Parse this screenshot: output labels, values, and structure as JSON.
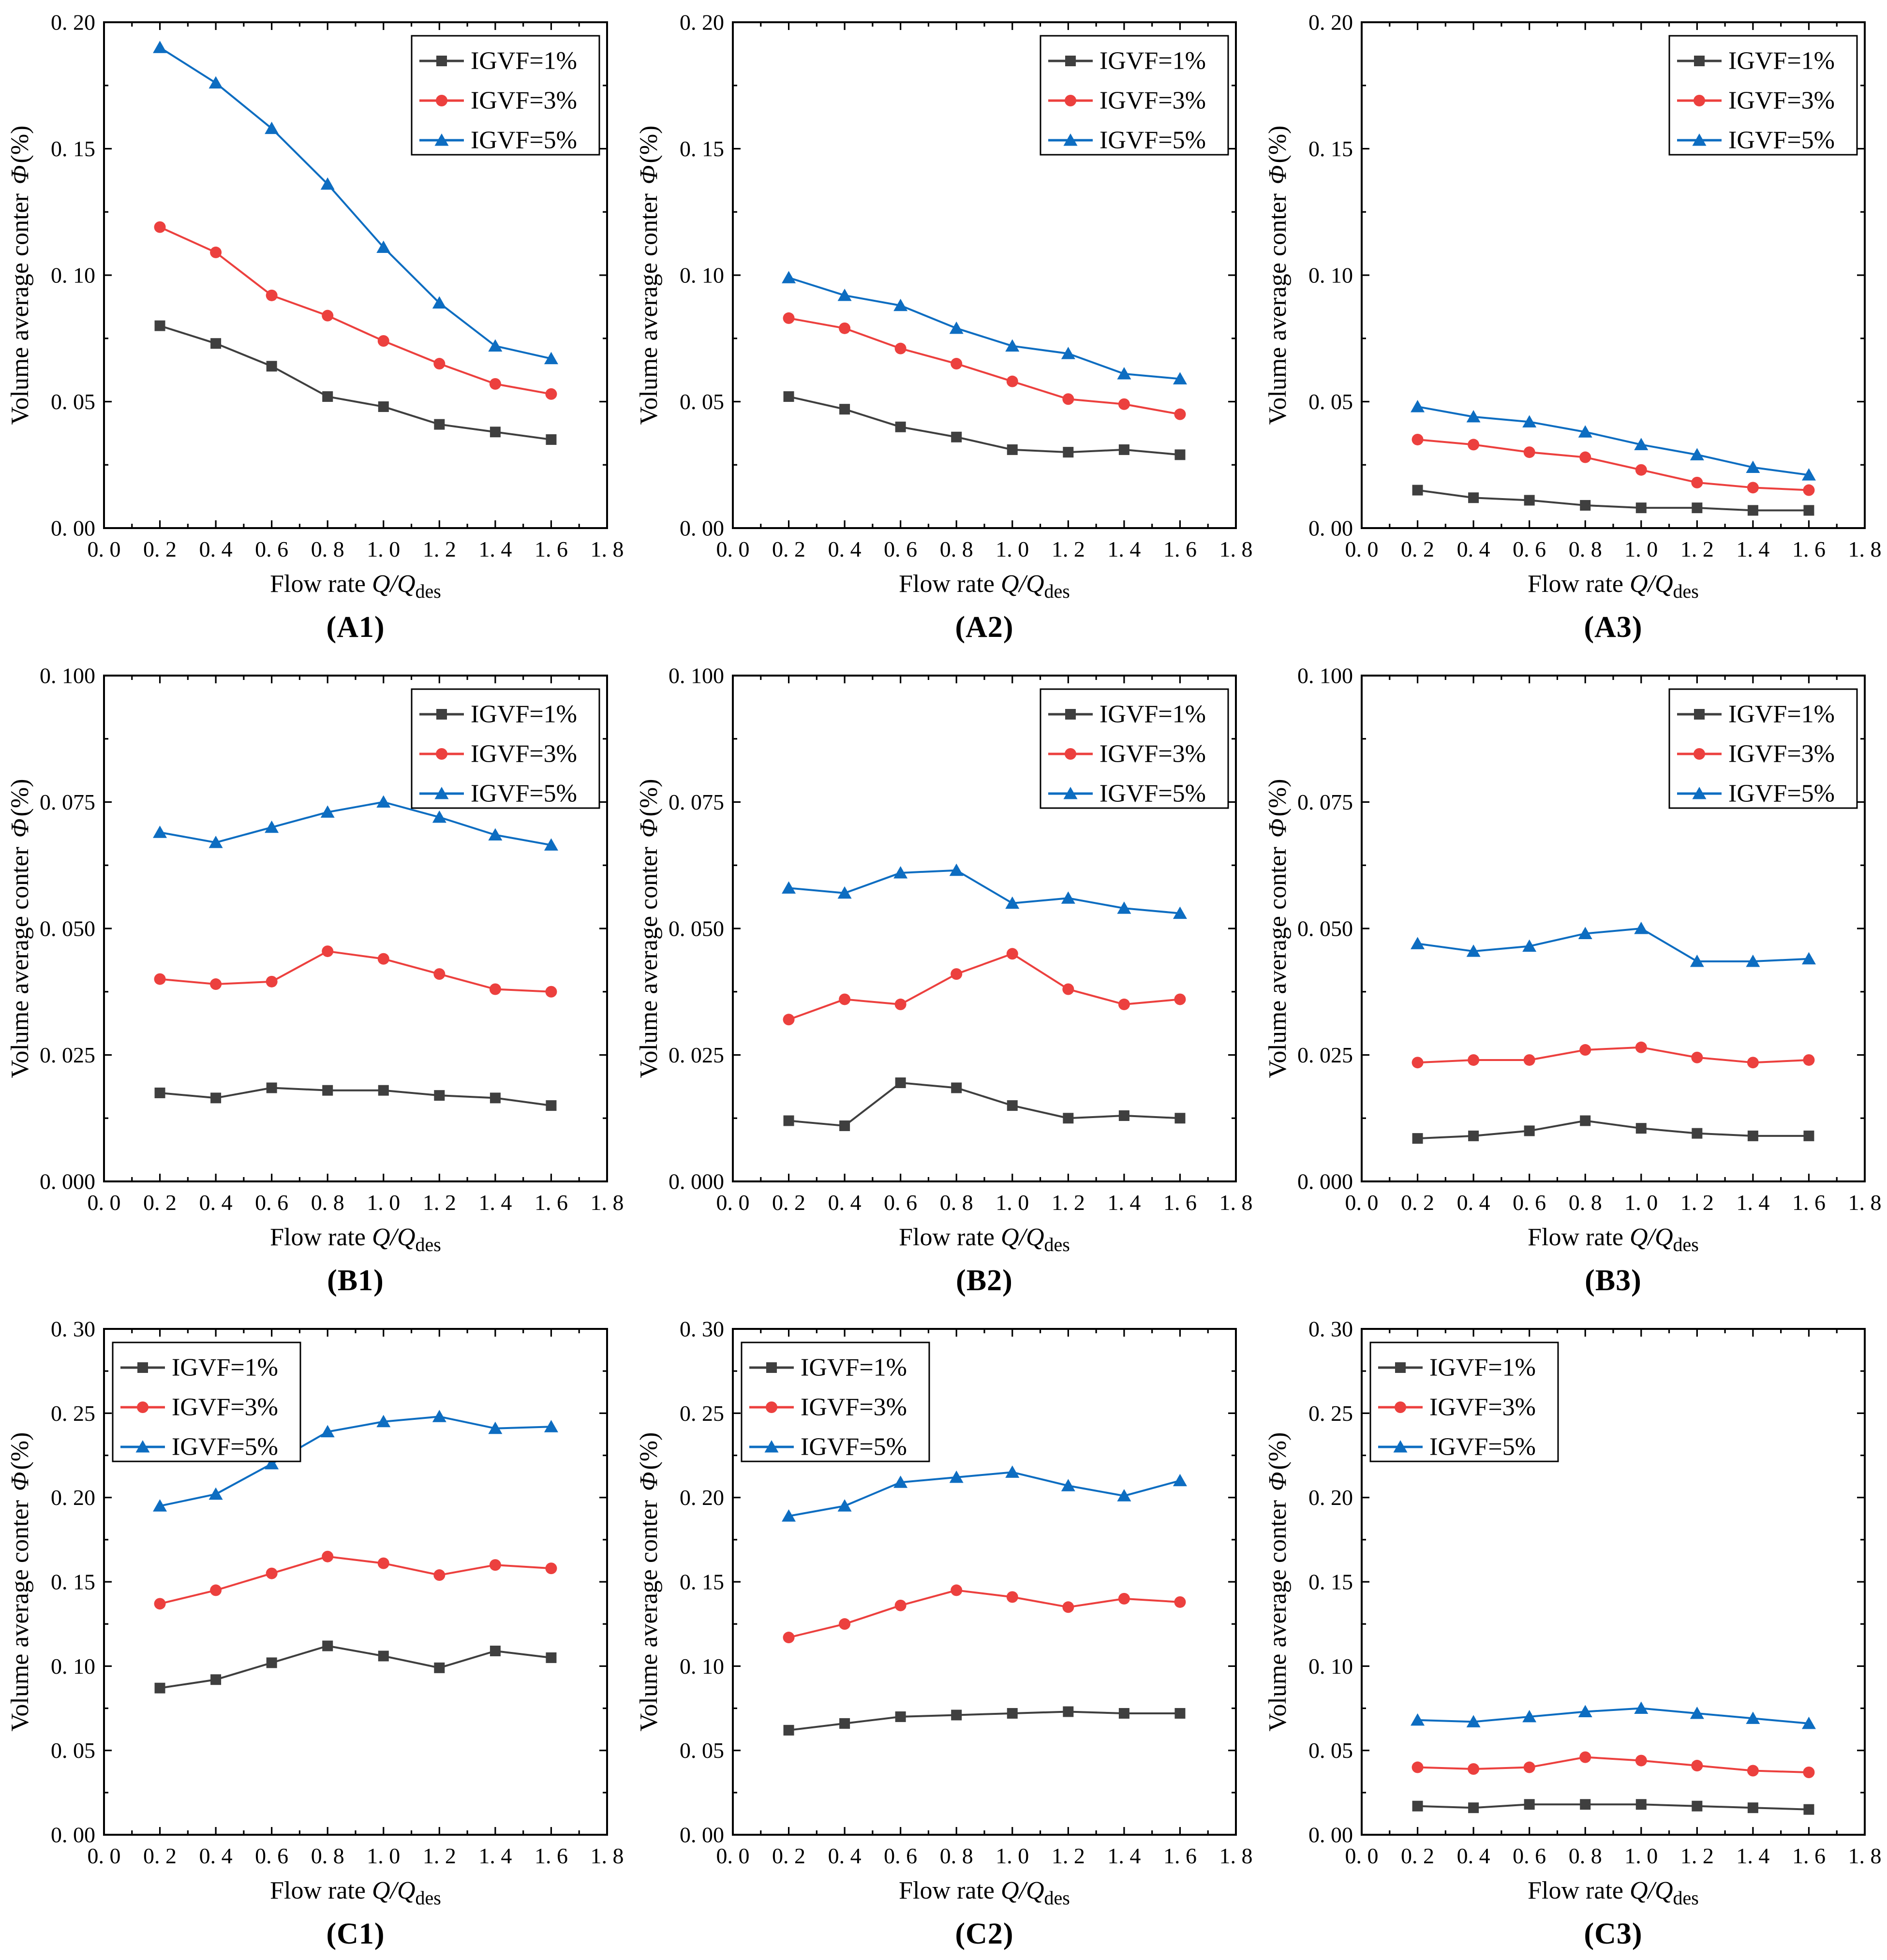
{
  "page": {
    "background": "#ffffff"
  },
  "axis": {
    "xlabel_prefix": "Flow rate ",
    "xlabel_math": "Q/Q",
    "xlabel_sub": "des",
    "ylabel_prefix": "Volume average conter ",
    "ylabel_symbol": "Φ",
    "ylabel_unit": "(%)",
    "xlim": [
      0.0,
      1.8
    ],
    "xtick_values": [
      0.0,
      0.2,
      0.4,
      0.6,
      0.8,
      1.0,
      1.2,
      1.4,
      1.6,
      1.8
    ],
    "xtick_labels": [
      "0. 0",
      "0. 2",
      "0. 4",
      "0. 6",
      "0. 8",
      "1. 0",
      "1. 2",
      "1. 4",
      "1. 6",
      "1. 8"
    ]
  },
  "chart_data": [
    {
      "id": "A1",
      "panel_label": "(A1)",
      "type": "line",
      "legend_position": "top-right",
      "ylim": [
        0,
        0.2
      ],
      "ytick_values": [
        0,
        0.05,
        0.1,
        0.15,
        0.2
      ],
      "ytick_labels": [
        "0. 00",
        "0. 05",
        "0. 10",
        "0. 15",
        "0. 20"
      ],
      "x": [
        0.2,
        0.4,
        0.6,
        0.8,
        1.0,
        1.2,
        1.4,
        1.6
      ],
      "series": [
        {
          "name": "IGVF=1%",
          "marker": "square",
          "color": "#3f3f3f",
          "values": [
            0.08,
            0.073,
            0.064,
            0.052,
            0.048,
            0.041,
            0.038,
            0.035
          ]
        },
        {
          "name": "IGVF=3%",
          "marker": "circle",
          "color": "#ec403e",
          "values": [
            0.119,
            0.109,
            0.092,
            0.084,
            0.074,
            0.065,
            0.057,
            0.053
          ]
        },
        {
          "name": "IGVF=5%",
          "marker": "triangle",
          "color": "#0d6dc1",
          "values": [
            0.19,
            0.176,
            0.158,
            0.136,
            0.111,
            0.089,
            0.072,
            0.067
          ]
        }
      ]
    },
    {
      "id": "A2",
      "panel_label": "(A2)",
      "type": "line",
      "legend_position": "top-right",
      "ylim": [
        0,
        0.2
      ],
      "ytick_values": [
        0,
        0.05,
        0.1,
        0.15,
        0.2
      ],
      "ytick_labels": [
        "0. 00",
        "0. 05",
        "0. 10",
        "0. 15",
        "0. 20"
      ],
      "x": [
        0.2,
        0.4,
        0.6,
        0.8,
        1.0,
        1.2,
        1.4,
        1.6
      ],
      "series": [
        {
          "name": "IGVF=1%",
          "marker": "square",
          "color": "#3f3f3f",
          "values": [
            0.052,
            0.047,
            0.04,
            0.036,
            0.031,
            0.03,
            0.031,
            0.029
          ]
        },
        {
          "name": "IGVF=3%",
          "marker": "circle",
          "color": "#ec403e",
          "values": [
            0.083,
            0.079,
            0.071,
            0.065,
            0.058,
            0.051,
            0.049,
            0.045
          ]
        },
        {
          "name": "IGVF=5%",
          "marker": "triangle",
          "color": "#0d6dc1",
          "values": [
            0.099,
            0.092,
            0.088,
            0.079,
            0.072,
            0.069,
            0.061,
            0.059
          ]
        }
      ]
    },
    {
      "id": "A3",
      "panel_label": "(A3)",
      "type": "line",
      "legend_position": "top-right",
      "ylim": [
        0,
        0.2
      ],
      "ytick_values": [
        0,
        0.05,
        0.1,
        0.15,
        0.2
      ],
      "ytick_labels": [
        "0. 00",
        "0. 05",
        "0. 10",
        "0. 15",
        "0. 20"
      ],
      "x": [
        0.2,
        0.4,
        0.6,
        0.8,
        1.0,
        1.2,
        1.4,
        1.6
      ],
      "series": [
        {
          "name": "IGVF=1%",
          "marker": "square",
          "color": "#3f3f3f",
          "values": [
            0.015,
            0.012,
            0.011,
            0.009,
            0.008,
            0.008,
            0.007,
            0.007
          ]
        },
        {
          "name": "IGVF=3%",
          "marker": "circle",
          "color": "#ec403e",
          "values": [
            0.035,
            0.033,
            0.03,
            0.028,
            0.023,
            0.018,
            0.016,
            0.015
          ]
        },
        {
          "name": "IGVF=5%",
          "marker": "triangle",
          "color": "#0d6dc1",
          "values": [
            0.048,
            0.044,
            0.042,
            0.038,
            0.033,
            0.029,
            0.024,
            0.021
          ]
        }
      ]
    },
    {
      "id": "B1",
      "panel_label": "(B1)",
      "type": "line",
      "legend_position": "top-right",
      "ylim": [
        0,
        0.1
      ],
      "ytick_values": [
        0,
        0.025,
        0.05,
        0.075,
        0.1
      ],
      "ytick_labels": [
        "0. 000",
        "0. 025",
        "0. 050",
        "0. 075",
        "0. 100"
      ],
      "x": [
        0.2,
        0.4,
        0.6,
        0.8,
        1.0,
        1.2,
        1.4,
        1.6
      ],
      "series": [
        {
          "name": "IGVF=1%",
          "marker": "square",
          "color": "#3f3f3f",
          "values": [
            0.0175,
            0.0165,
            0.0185,
            0.018,
            0.018,
            0.017,
            0.0165,
            0.015
          ]
        },
        {
          "name": "IGVF=3%",
          "marker": "circle",
          "color": "#ec403e",
          "values": [
            0.04,
            0.039,
            0.0395,
            0.0455,
            0.044,
            0.041,
            0.038,
            0.0375
          ]
        },
        {
          "name": "IGVF=5%",
          "marker": "triangle",
          "color": "#0d6dc1",
          "values": [
            0.069,
            0.067,
            0.07,
            0.073,
            0.075,
            0.072,
            0.0685,
            0.0665
          ]
        }
      ]
    },
    {
      "id": "B2",
      "panel_label": "(B2)",
      "type": "line",
      "legend_position": "top-right",
      "ylim": [
        0,
        0.1
      ],
      "ytick_values": [
        0,
        0.025,
        0.05,
        0.075,
        0.1
      ],
      "ytick_labels": [
        "0. 000",
        "0. 025",
        "0. 050",
        "0. 075",
        "0. 100"
      ],
      "x": [
        0.2,
        0.4,
        0.6,
        0.8,
        1.0,
        1.2,
        1.4,
        1.6
      ],
      "series": [
        {
          "name": "IGVF=1%",
          "marker": "square",
          "color": "#3f3f3f",
          "values": [
            0.012,
            0.011,
            0.0195,
            0.0185,
            0.015,
            0.0125,
            0.013,
            0.0125
          ]
        },
        {
          "name": "IGVF=3%",
          "marker": "circle",
          "color": "#ec403e",
          "values": [
            0.032,
            0.036,
            0.035,
            0.041,
            0.045,
            0.038,
            0.035,
            0.036
          ]
        },
        {
          "name": "IGVF=5%",
          "marker": "triangle",
          "color": "#0d6dc1",
          "values": [
            0.058,
            0.057,
            0.061,
            0.0615,
            0.055,
            0.056,
            0.054,
            0.053
          ]
        }
      ]
    },
    {
      "id": "B3",
      "panel_label": "(B3)",
      "type": "line",
      "legend_position": "top-right",
      "ylim": [
        0,
        0.1
      ],
      "ytick_values": [
        0,
        0.025,
        0.05,
        0.075,
        0.1
      ],
      "ytick_labels": [
        "0. 000",
        "0. 025",
        "0. 050",
        "0. 075",
        "0. 100"
      ],
      "x": [
        0.2,
        0.4,
        0.6,
        0.8,
        1.0,
        1.2,
        1.4,
        1.6
      ],
      "series": [
        {
          "name": "IGVF=1%",
          "marker": "square",
          "color": "#3f3f3f",
          "values": [
            0.0085,
            0.009,
            0.01,
            0.012,
            0.0105,
            0.0095,
            0.009,
            0.009
          ]
        },
        {
          "name": "IGVF=3%",
          "marker": "circle",
          "color": "#ec403e",
          "values": [
            0.0235,
            0.024,
            0.024,
            0.026,
            0.0265,
            0.0245,
            0.0235,
            0.024
          ]
        },
        {
          "name": "IGVF=5%",
          "marker": "triangle",
          "color": "#0d6dc1",
          "values": [
            0.047,
            0.0455,
            0.0465,
            0.049,
            0.05,
            0.0435,
            0.0435,
            0.044
          ]
        }
      ]
    },
    {
      "id": "C1",
      "panel_label": "(C1)",
      "type": "line",
      "legend_position": "top-left",
      "ylim": [
        0,
        0.3
      ],
      "ytick_values": [
        0,
        0.05,
        0.1,
        0.15,
        0.2,
        0.25,
        0.3
      ],
      "ytick_labels": [
        "0. 00",
        "0. 05",
        "0. 10",
        "0. 15",
        "0. 20",
        "0. 25",
        "0. 30"
      ],
      "x": [
        0.2,
        0.4,
        0.6,
        0.8,
        1.0,
        1.2,
        1.4,
        1.6
      ],
      "series": [
        {
          "name": "IGVF=1%",
          "marker": "square",
          "color": "#3f3f3f",
          "values": [
            0.087,
            0.092,
            0.102,
            0.112,
            0.106,
            0.099,
            0.109,
            0.105
          ]
        },
        {
          "name": "IGVF=3%",
          "marker": "circle",
          "color": "#ec403e",
          "values": [
            0.137,
            0.145,
            0.155,
            0.165,
            0.161,
            0.154,
            0.16,
            0.158
          ]
        },
        {
          "name": "IGVF=5%",
          "marker": "triangle",
          "color": "#0d6dc1",
          "values": [
            0.195,
            0.202,
            0.22,
            0.239,
            0.245,
            0.248,
            0.241,
            0.242
          ]
        }
      ]
    },
    {
      "id": "C2",
      "panel_label": "(C2)",
      "type": "line",
      "legend_position": "top-left",
      "ylim": [
        0,
        0.3
      ],
      "ytick_values": [
        0,
        0.05,
        0.1,
        0.15,
        0.2,
        0.25,
        0.3
      ],
      "ytick_labels": [
        "0. 00",
        "0. 05",
        "0. 10",
        "0. 15",
        "0. 20",
        "0. 25",
        "0. 30"
      ],
      "x": [
        0.2,
        0.4,
        0.6,
        0.8,
        1.0,
        1.2,
        1.4,
        1.6
      ],
      "series": [
        {
          "name": "IGVF=1%",
          "marker": "square",
          "color": "#3f3f3f",
          "values": [
            0.062,
            0.066,
            0.07,
            0.071,
            0.072,
            0.073,
            0.072,
            0.072
          ]
        },
        {
          "name": "IGVF=3%",
          "marker": "circle",
          "color": "#ec403e",
          "values": [
            0.117,
            0.125,
            0.136,
            0.145,
            0.141,
            0.135,
            0.14,
            0.138
          ]
        },
        {
          "name": "IGVF=5%",
          "marker": "triangle",
          "color": "#0d6dc1",
          "values": [
            0.189,
            0.195,
            0.209,
            0.212,
            0.215,
            0.207,
            0.201,
            0.21
          ]
        }
      ]
    },
    {
      "id": "C3",
      "panel_label": "(C3)",
      "type": "line",
      "legend_position": "top-left",
      "ylim": [
        0,
        0.3
      ],
      "ytick_values": [
        0,
        0.05,
        0.1,
        0.15,
        0.2,
        0.25,
        0.3
      ],
      "ytick_labels": [
        "0. 00",
        "0. 05",
        "0. 10",
        "0. 15",
        "0. 20",
        "0. 25",
        "0. 30"
      ],
      "x": [
        0.2,
        0.4,
        0.6,
        0.8,
        1.0,
        1.2,
        1.4,
        1.6
      ],
      "series": [
        {
          "name": "IGVF=1%",
          "marker": "square",
          "color": "#3f3f3f",
          "values": [
            0.017,
            0.016,
            0.018,
            0.018,
            0.018,
            0.017,
            0.016,
            0.015
          ]
        },
        {
          "name": "IGVF=3%",
          "marker": "circle",
          "color": "#ec403e",
          "values": [
            0.04,
            0.039,
            0.04,
            0.046,
            0.044,
            0.041,
            0.038,
            0.037
          ]
        },
        {
          "name": "IGVF=5%",
          "marker": "triangle",
          "color": "#0d6dc1",
          "values": [
            0.068,
            0.067,
            0.07,
            0.073,
            0.075,
            0.072,
            0.069,
            0.066
          ]
        }
      ]
    }
  ]
}
